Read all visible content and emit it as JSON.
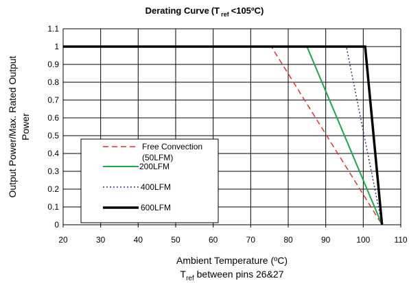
{
  "chart_data": {
    "type": "line",
    "title": "Derating   Curve (T ref <105ºC)",
    "title_main": "Derating   Curve",
    "title_paren_open": "(T",
    "title_sub": "ref",
    "title_rest": "<105ºC)",
    "xlabel": "Ambient Temperature  (ºC)",
    "xlabel2_main": "T",
    "xlabel2_sub": "ref",
    "xlabel2_rest": " between pins 26&27",
    "ylabel_line1": "Output Power/Max. Rated Output",
    "ylabel_line2": "Power",
    "xlim": [
      20,
      110
    ],
    "ylim": [
      0,
      1.1
    ],
    "x_ticks": [
      "20",
      "30",
      "40",
      "50",
      "60",
      "70",
      "80",
      "90",
      "100",
      "110"
    ],
    "y_ticks": [
      "0",
      "0.1",
      "0.2",
      "0.3",
      "0.4",
      "0.5",
      "0.6",
      "0.7",
      "0.8",
      "0.9",
      "1",
      "1.1"
    ],
    "grid": true,
    "legend_position": "lower-left",
    "series": [
      {
        "name": "Free Convection (50LFM)",
        "name_line1": "Free Convection",
        "name_line2": "(50LFM)",
        "color": "#e03030",
        "style": "dashed",
        "x": [
          20,
          75.5,
          105
        ],
        "y": [
          1,
          1,
          0
        ]
      },
      {
        "name": "200LFM",
        "color": "#18a84a",
        "style": "solid",
        "x": [
          20,
          85,
          105
        ],
        "y": [
          1,
          1,
          0
        ]
      },
      {
        "name": "400LFM",
        "color": "#2a2a8c",
        "style": "dotted",
        "x": [
          20,
          95.5,
          105
        ],
        "y": [
          1,
          1,
          0
        ]
      },
      {
        "name": "600LFM",
        "color": "#000000",
        "style": "bold",
        "x": [
          20,
          100.5,
          105
        ],
        "y": [
          1,
          1,
          0
        ]
      }
    ]
  }
}
